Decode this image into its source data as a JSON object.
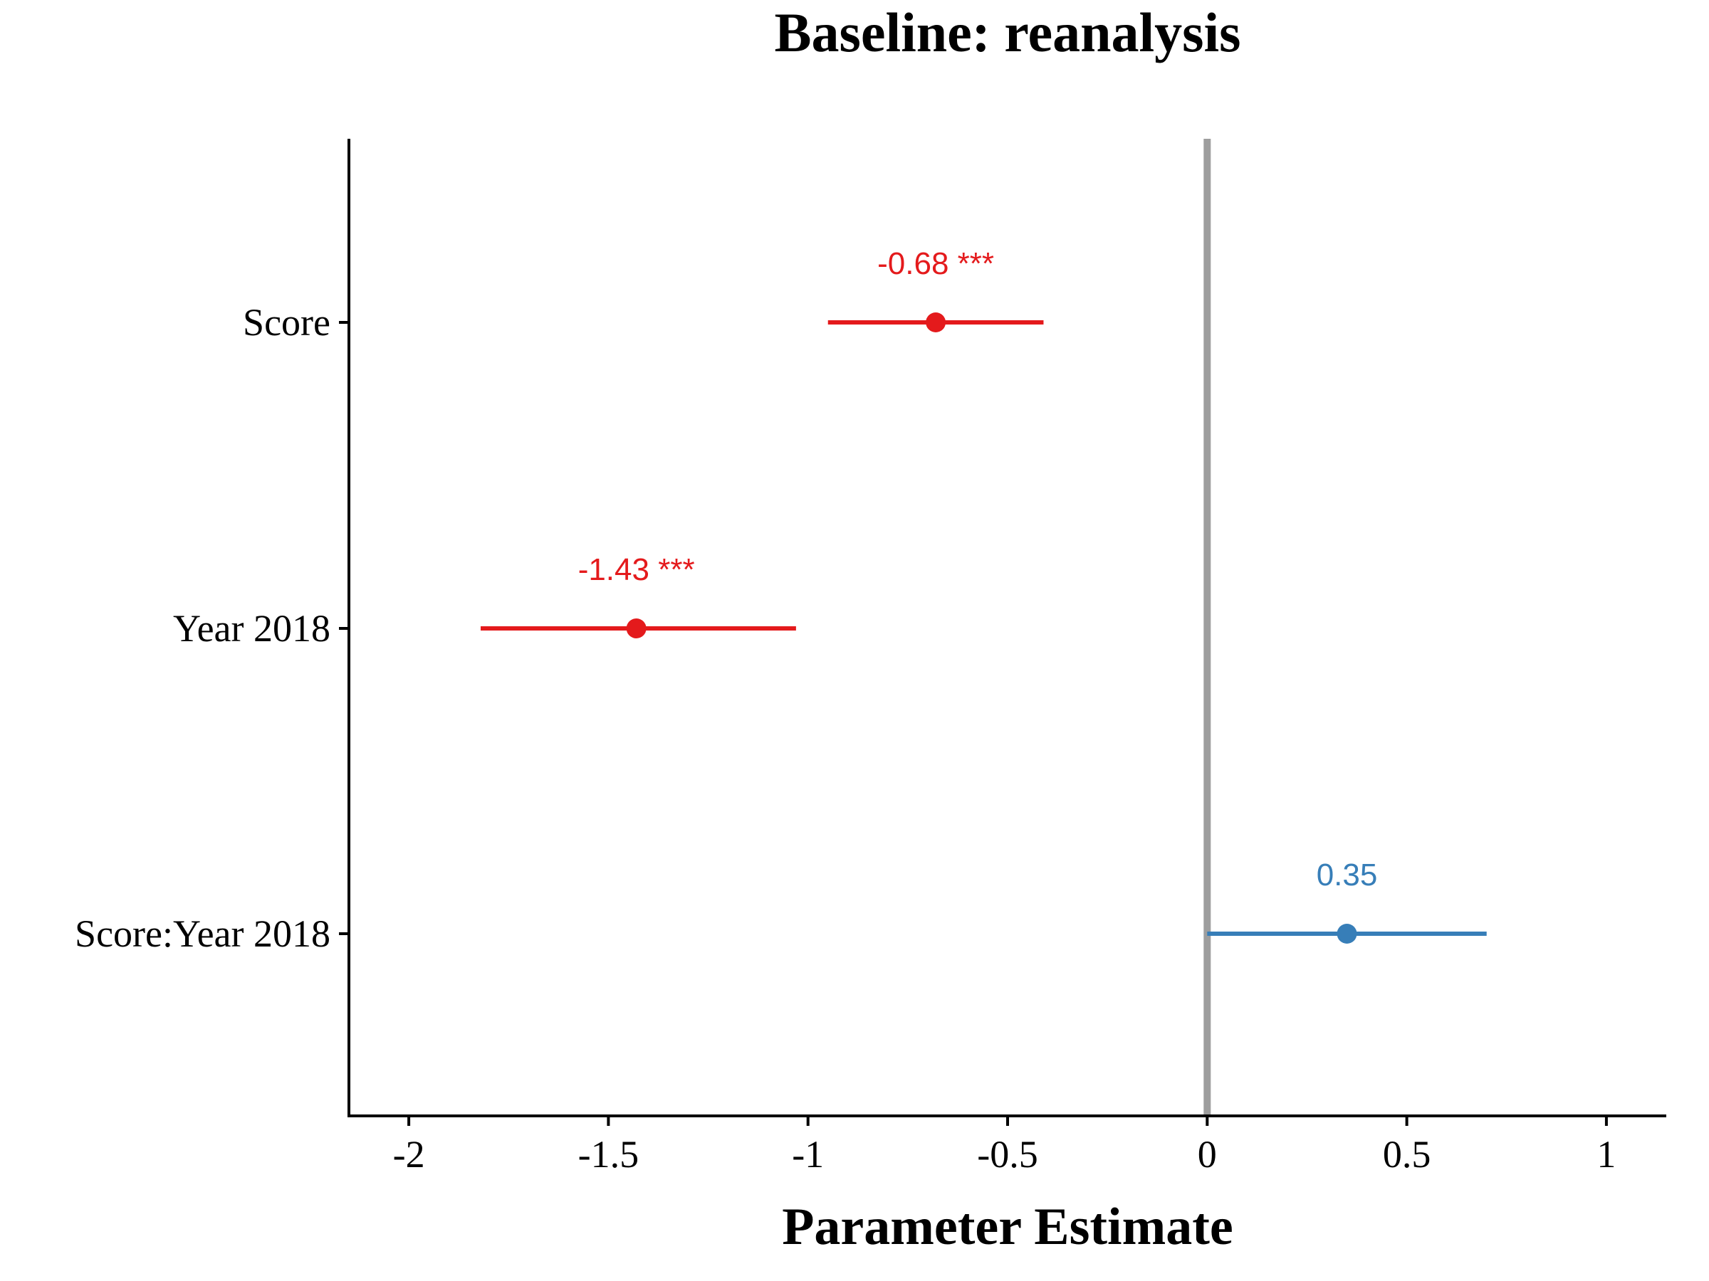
{
  "chart_data": {
    "type": "scatter",
    "subtype": "coefficient-plot",
    "title": "Baseline: reanalysis",
    "xlabel": "Parameter Estimate",
    "ylabel": "",
    "xlim": [
      -2.15,
      1.15
    ],
    "xticks": [
      -2,
      -1.5,
      -1,
      -0.5,
      0,
      0.5,
      1
    ],
    "xtick_labels": [
      "-2",
      "-1.5",
      "-1",
      "-0.5",
      "0",
      "0.5",
      "1"
    ],
    "reference_line": 0,
    "grid": false,
    "legend": "none",
    "terms": [
      {
        "label": "Score",
        "estimate": -0.68,
        "ci_low": -0.95,
        "ci_high": -0.41,
        "annotation": "-0.68 ***",
        "color": "#e41a1c"
      },
      {
        "label": "Year 2018",
        "estimate": -1.43,
        "ci_low": -1.82,
        "ci_high": -1.03,
        "annotation": "-1.43 ***",
        "color": "#e41a1c"
      },
      {
        "label": "Score:Year 2018",
        "estimate": 0.35,
        "ci_low": 0.0,
        "ci_high": 0.7,
        "annotation": "0.35",
        "color": "#377eb8"
      }
    ],
    "colors": {
      "significant": "#e41a1c",
      "nonsignificant": "#377eb8",
      "reference": "#9e9e9e",
      "axis": "#000000"
    }
  }
}
